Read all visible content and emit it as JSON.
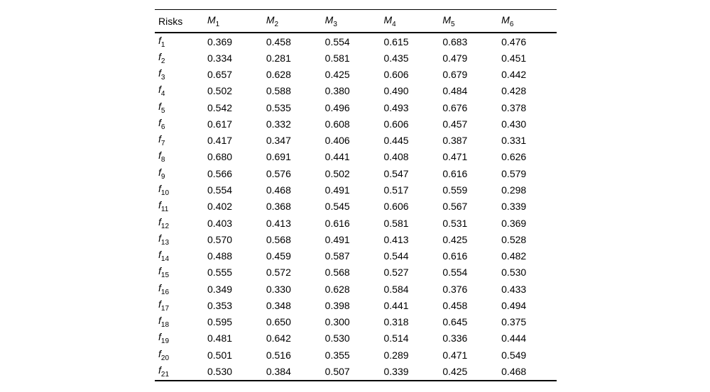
{
  "table": {
    "header": {
      "risks_label": "Risks",
      "columns": [
        {
          "base": "M",
          "sub": "1"
        },
        {
          "base": "M",
          "sub": "2"
        },
        {
          "base": "M",
          "sub": "3"
        },
        {
          "base": "M",
          "sub": "4"
        },
        {
          "base": "M",
          "sub": "5"
        },
        {
          "base": "M",
          "sub": "6"
        }
      ]
    },
    "rows": [
      {
        "base": "f",
        "sub": "1",
        "values": [
          "0.369",
          "0.458",
          "0.554",
          "0.615",
          "0.683",
          "0.476"
        ]
      },
      {
        "base": "f",
        "sub": "2",
        "values": [
          "0.334",
          "0.281",
          "0.581",
          "0.435",
          "0.479",
          "0.451"
        ]
      },
      {
        "base": "f",
        "sub": "3",
        "values": [
          "0.657",
          "0.628",
          "0.425",
          "0.606",
          "0.679",
          "0.442"
        ]
      },
      {
        "base": "f",
        "sub": "4",
        "values": [
          "0.502",
          "0.588",
          "0.380",
          "0.490",
          "0.484",
          "0.428"
        ]
      },
      {
        "base": "f",
        "sub": "5",
        "values": [
          "0.542",
          "0.535",
          "0.496",
          "0.493",
          "0.676",
          "0.378"
        ]
      },
      {
        "base": "f",
        "sub": "6",
        "values": [
          "0.617",
          "0.332",
          "0.608",
          "0.606",
          "0.457",
          "0.430"
        ]
      },
      {
        "base": "f",
        "sub": "7",
        "values": [
          "0.417",
          "0.347",
          "0.406",
          "0.445",
          "0.387",
          "0.331"
        ]
      },
      {
        "base": "f",
        "sub": "8",
        "values": [
          "0.680",
          "0.691",
          "0.441",
          "0.408",
          "0.471",
          "0.626"
        ]
      },
      {
        "base": "f",
        "sub": "9",
        "values": [
          "0.566",
          "0.576",
          "0.502",
          "0.547",
          "0.616",
          "0.579"
        ]
      },
      {
        "base": "f",
        "sub": "10",
        "values": [
          "0.554",
          "0.468",
          "0.491",
          "0.517",
          "0.559",
          "0.298"
        ]
      },
      {
        "base": "f",
        "sub": "11",
        "values": [
          "0.402",
          "0.368",
          "0.545",
          "0.606",
          "0.567",
          "0.339"
        ]
      },
      {
        "base": "f",
        "sub": "12",
        "values": [
          "0.403",
          "0.413",
          "0.616",
          "0.581",
          "0.531",
          "0.369"
        ]
      },
      {
        "base": "f",
        "sub": "13",
        "values": [
          "0.570",
          "0.568",
          "0.491",
          "0.413",
          "0.425",
          "0.528"
        ]
      },
      {
        "base": "f",
        "sub": "14",
        "values": [
          "0.488",
          "0.459",
          "0.587",
          "0.544",
          "0.616",
          "0.482"
        ]
      },
      {
        "base": "f",
        "sub": "15",
        "values": [
          "0.555",
          "0.572",
          "0.568",
          "0.527",
          "0.554",
          "0.530"
        ]
      },
      {
        "base": "f",
        "sub": "16",
        "values": [
          "0.349",
          "0.330",
          "0.628",
          "0.584",
          "0.376",
          "0.433"
        ]
      },
      {
        "base": "f",
        "sub": "17",
        "values": [
          "0.353",
          "0.348",
          "0.398",
          "0.441",
          "0.458",
          "0.494"
        ]
      },
      {
        "base": "f",
        "sub": "18",
        "values": [
          "0.595",
          "0.650",
          "0.300",
          "0.318",
          "0.645",
          "0.375"
        ]
      },
      {
        "base": "f",
        "sub": "19",
        "values": [
          "0.481",
          "0.642",
          "0.530",
          "0.514",
          "0.336",
          "0.444"
        ]
      },
      {
        "base": "f",
        "sub": "20",
        "values": [
          "0.501",
          "0.516",
          "0.355",
          "0.289",
          "0.471",
          "0.549"
        ]
      },
      {
        "base": "f",
        "sub": "21",
        "values": [
          "0.530",
          "0.384",
          "0.507",
          "0.339",
          "0.425",
          "0.468"
        ]
      }
    ]
  }
}
